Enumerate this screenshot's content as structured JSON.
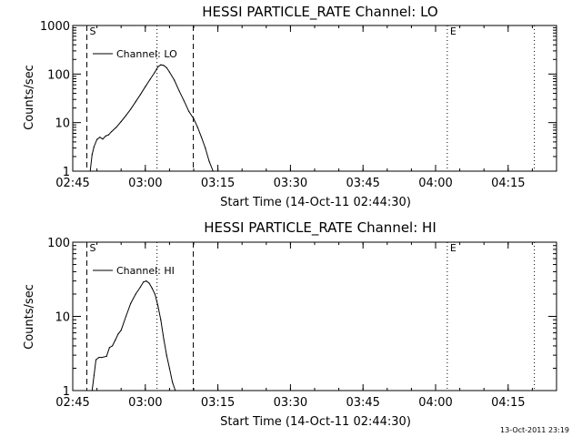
{
  "chart_data": [
    {
      "type": "line",
      "title": "HESSI PARTICLE_RATE Channel: LO",
      "xlabel": "Start Time (14-Oct-11 02:44:30)",
      "ylabel": "Counts/sec",
      "yscale": "log",
      "xlim": [
        "02:45",
        "04:25"
      ],
      "ylim": [
        1,
        1000
      ],
      "x_ticks": [
        "02:45",
        "03:00",
        "03:15",
        "03:30",
        "03:45",
        "04:00",
        "04:15"
      ],
      "y_ticks": [
        "1",
        "10",
        "100",
        "1000"
      ],
      "legend": "top-left",
      "grid": false,
      "series": [
        {
          "name": "Channel: LO",
          "x": [
            "02:48:36",
            "02:49:00",
            "02:49:24",
            "02:50:00",
            "02:50:36",
            "02:51:12",
            "02:51:48",
            "02:52:24",
            "02:53:00",
            "02:54:00",
            "02:55:00",
            "02:56:00",
            "02:57:00",
            "02:58:00",
            "02:59:00",
            "03:00:00",
            "03:01:00",
            "03:02:00",
            "03:02:36",
            "03:03:12",
            "03:03:48",
            "03:04:24",
            "03:05:00",
            "03:06:00",
            "03:07:00",
            "03:08:00",
            "03:09:00",
            "03:10:00",
            "03:10:48",
            "03:11:36",
            "03:12:24",
            "03:13:12",
            "03:14:00"
          ],
          "y": [
            1,
            2.2,
            3.2,
            4.5,
            5.0,
            4.6,
            5.3,
            5.6,
            6.5,
            8.0,
            10.5,
            14,
            19,
            27,
            38,
            55,
            78,
            110,
            140,
            155,
            150,
            135,
            110,
            75,
            45,
            28,
            17,
            12,
            8,
            5,
            3,
            1.6,
            1
          ]
        }
      ],
      "vertical_lines": [
        {
          "x": "02:47:55",
          "style": "dashed",
          "label": "S"
        },
        {
          "x": "03:09:55",
          "style": "dashed",
          "label": ""
        },
        {
          "x": "03:02:25",
          "style": "dotted",
          "label": ""
        },
        {
          "x": "04:02:25",
          "style": "dotted",
          "label": "E"
        },
        {
          "x": "04:20:25",
          "style": "dotted",
          "label": ""
        }
      ]
    },
    {
      "type": "line",
      "title": "HESSI PARTICLE_RATE Channel: HI",
      "xlabel": "Start Time (14-Oct-11 02:44:30)",
      "ylabel": "Counts/sec",
      "yscale": "log",
      "xlim": [
        "02:45",
        "04:25"
      ],
      "ylim": [
        1,
        100
      ],
      "x_ticks": [
        "02:45",
        "03:00",
        "03:15",
        "03:30",
        "03:45",
        "04:00",
        "04:15"
      ],
      "y_ticks": [
        "1",
        "10",
        "100"
      ],
      "legend": "top-left",
      "grid": false,
      "series": [
        {
          "name": "Channel: HI",
          "x": [
            "02:49:00",
            "02:49:24",
            "02:49:48",
            "02:50:24",
            "02:51:00",
            "02:52:00",
            "02:52:36",
            "02:53:12",
            "02:53:48",
            "02:54:24",
            "02:55:00",
            "02:56:00",
            "02:57:00",
            "02:58:00",
            "02:59:00",
            "02:59:36",
            "03:00:12",
            "03:00:48",
            "03:01:24",
            "03:02:00",
            "03:02:36",
            "03:03:12",
            "03:03:48",
            "03:04:24",
            "03:05:00",
            "03:05:36",
            "03:06:12"
          ],
          "y": [
            1,
            1.6,
            2.6,
            2.8,
            2.8,
            2.9,
            3.8,
            4.0,
            4.8,
            5.8,
            6.5,
            10,
            15,
            20,
            25,
            29,
            30,
            28,
            24,
            20,
            14,
            9,
            5,
            3,
            2,
            1.3,
            1
          ]
        }
      ],
      "vertical_lines": [
        {
          "x": "02:47:55",
          "style": "dashed",
          "label": "S"
        },
        {
          "x": "03:09:55",
          "style": "dashed",
          "label": ""
        },
        {
          "x": "03:02:25",
          "style": "dotted",
          "label": ""
        },
        {
          "x": "04:02:25",
          "style": "dotted",
          "label": "E"
        },
        {
          "x": "04:20:25",
          "style": "dotted",
          "label": ""
        }
      ]
    }
  ],
  "footer": {
    "timestamp": "13-Oct-2011 23:19"
  }
}
